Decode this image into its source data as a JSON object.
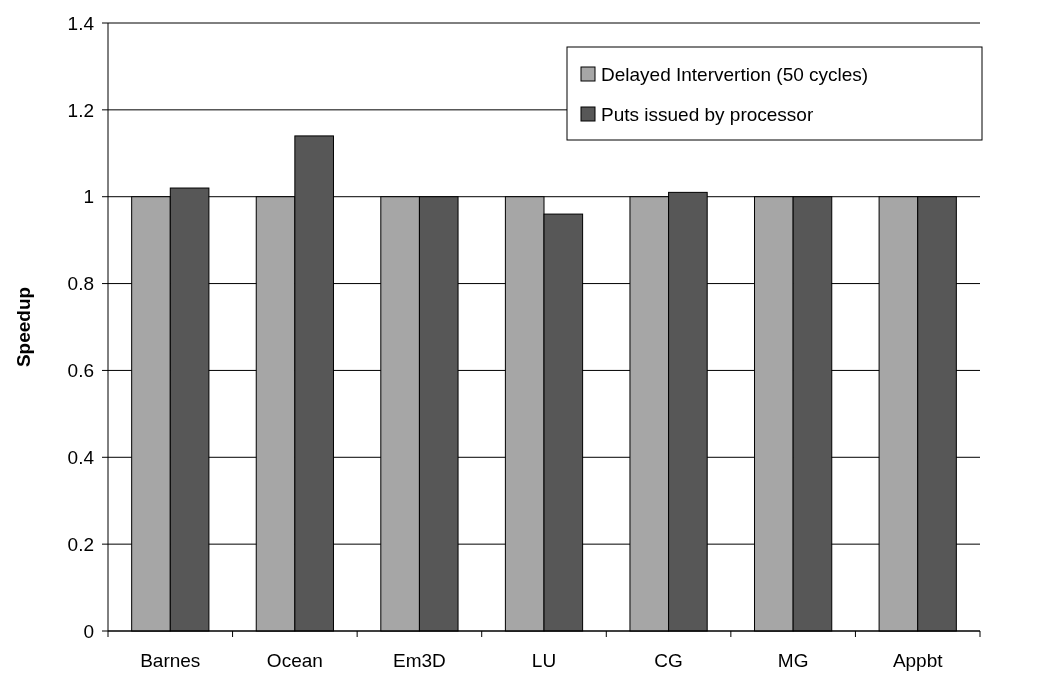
{
  "chart_data": {
    "type": "bar",
    "ylabel": "Speedup",
    "categories": [
      "Barnes",
      "Ocean",
      "Em3D",
      "LU",
      "CG",
      "MG",
      "Appbt"
    ],
    "series": [
      {
        "name": "Delayed Intervertion (50 cycles)",
        "color": "#a6a6a6",
        "values": [
          1,
          1,
          1,
          1,
          1,
          1,
          1
        ]
      },
      {
        "name": "Puts issued by processor",
        "color": "#575757",
        "values": [
          1.02,
          1.14,
          1,
          0.96,
          1.01,
          1,
          1
        ]
      }
    ],
    "ylim": [
      0,
      1.4
    ],
    "yticks": [
      0,
      0.2,
      0.4,
      0.6,
      0.8,
      1,
      1.2,
      1.4
    ],
    "grid": "y",
    "legend": "top right"
  }
}
